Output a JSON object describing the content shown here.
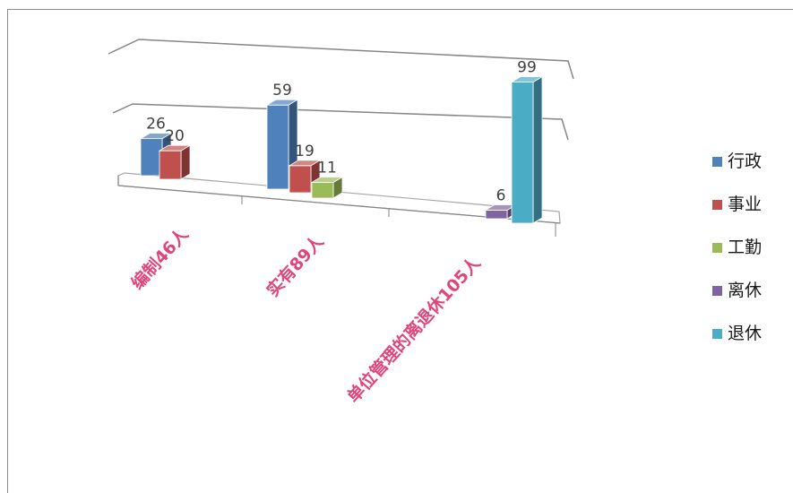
{
  "chart_data": {
    "type": "bar",
    "style": "3d-clustered-column",
    "categories": [
      "编制46人",
      "实有89人",
      "单位管理的离退休105人"
    ],
    "series": [
      {
        "name": "行政",
        "color": "#4f81bd",
        "values": [
          26,
          59,
          null
        ]
      },
      {
        "name": "事业",
        "color": "#c0504d",
        "values": [
          20,
          19,
          null
        ]
      },
      {
        "name": "工勤",
        "color": "#9bbb59",
        "values": [
          null,
          11,
          null
        ]
      },
      {
        "name": "离休",
        "color": "#8064a2",
        "values": [
          null,
          null,
          6
        ]
      },
      {
        "name": "退休",
        "color": "#4bacc6",
        "values": [
          null,
          null,
          99
        ]
      }
    ],
    "ylim": [
      0,
      100
    ],
    "grid": true,
    "legend": "right",
    "category_label_color": "#e0457b"
  }
}
